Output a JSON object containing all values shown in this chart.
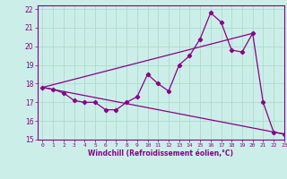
{
  "xlabel": "Windchill (Refroidissement éolien,°C)",
  "background_color": "#cceee8",
  "grid_color": "#aaddcc",
  "line_color": "#880088",
  "xlim": [
    -0.5,
    23
  ],
  "ylim": [
    15,
    22.2
  ],
  "yticks": [
    15,
    16,
    17,
    18,
    19,
    20,
    21,
    22
  ],
  "xticks": [
    0,
    1,
    2,
    3,
    4,
    5,
    6,
    7,
    8,
    9,
    10,
    11,
    12,
    13,
    14,
    15,
    16,
    17,
    18,
    19,
    20,
    21,
    22,
    23
  ],
  "line1_x": [
    0,
    1,
    2,
    3,
    4,
    5,
    6,
    7,
    8,
    9,
    10,
    11,
    12,
    13,
    14,
    15,
    16,
    17,
    18,
    19,
    20,
    21,
    22,
    23
  ],
  "line1_y": [
    17.8,
    17.7,
    17.5,
    17.1,
    17.0,
    17.0,
    16.6,
    16.6,
    17.0,
    17.3,
    18.5,
    18.0,
    17.6,
    19.0,
    19.5,
    20.4,
    21.8,
    21.3,
    19.8,
    19.7,
    20.7,
    17.0,
    15.4,
    15.3
  ],
  "line2_x": [
    0,
    20
  ],
  "line2_y": [
    17.8,
    20.7
  ],
  "line3_x": [
    0,
    23
  ],
  "line3_y": [
    17.8,
    15.3
  ]
}
